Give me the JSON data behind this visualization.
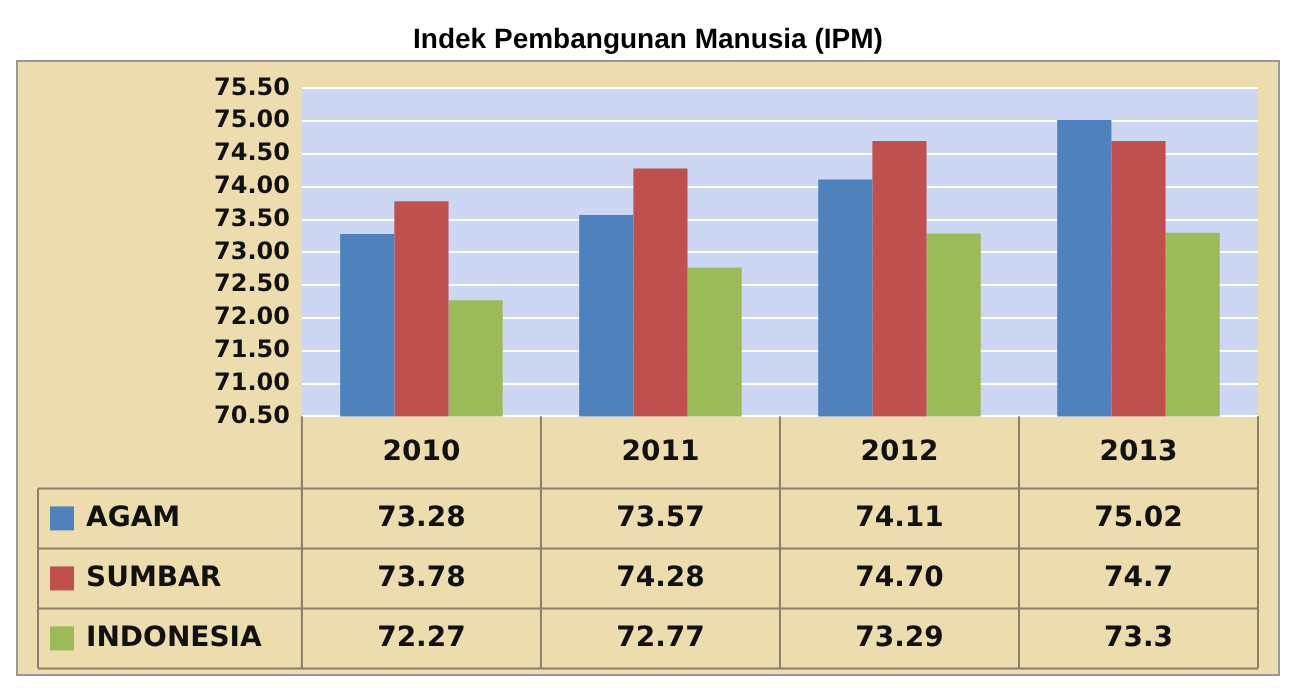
{
  "chart_data": {
    "type": "bar",
    "title": "Indek Pembangunan Manusia (IPM)",
    "categories": [
      "2010",
      "2011",
      "2012",
      "2013"
    ],
    "series": [
      {
        "name": "AGAM",
        "color": "#4f81bd",
        "values": [
          73.28,
          73.57,
          74.11,
          75.02
        ],
        "value_labels": [
          "73.28",
          "73.57",
          "74.11",
          "75.02"
        ]
      },
      {
        "name": "SUMBAR",
        "color": "#c0504d",
        "values": [
          73.78,
          74.28,
          74.7,
          74.7
        ],
        "value_labels": [
          "73.78",
          "74.28",
          "74.70",
          "74.7"
        ]
      },
      {
        "name": "INDONESIA",
        "color": "#9bbb59",
        "values": [
          72.27,
          72.77,
          73.29,
          73.3
        ],
        "value_labels": [
          "72.27",
          "72.77",
          "73.29",
          "73.3"
        ]
      }
    ],
    "ylim": [
      70.5,
      75.5
    ],
    "yticks": [
      "70.50",
      "71.00",
      "71.50",
      "72.00",
      "72.50",
      "73.00",
      "73.50",
      "74.00",
      "74.50",
      "75.00",
      "75.50"
    ],
    "grid": "y",
    "legend": "bottom left"
  }
}
